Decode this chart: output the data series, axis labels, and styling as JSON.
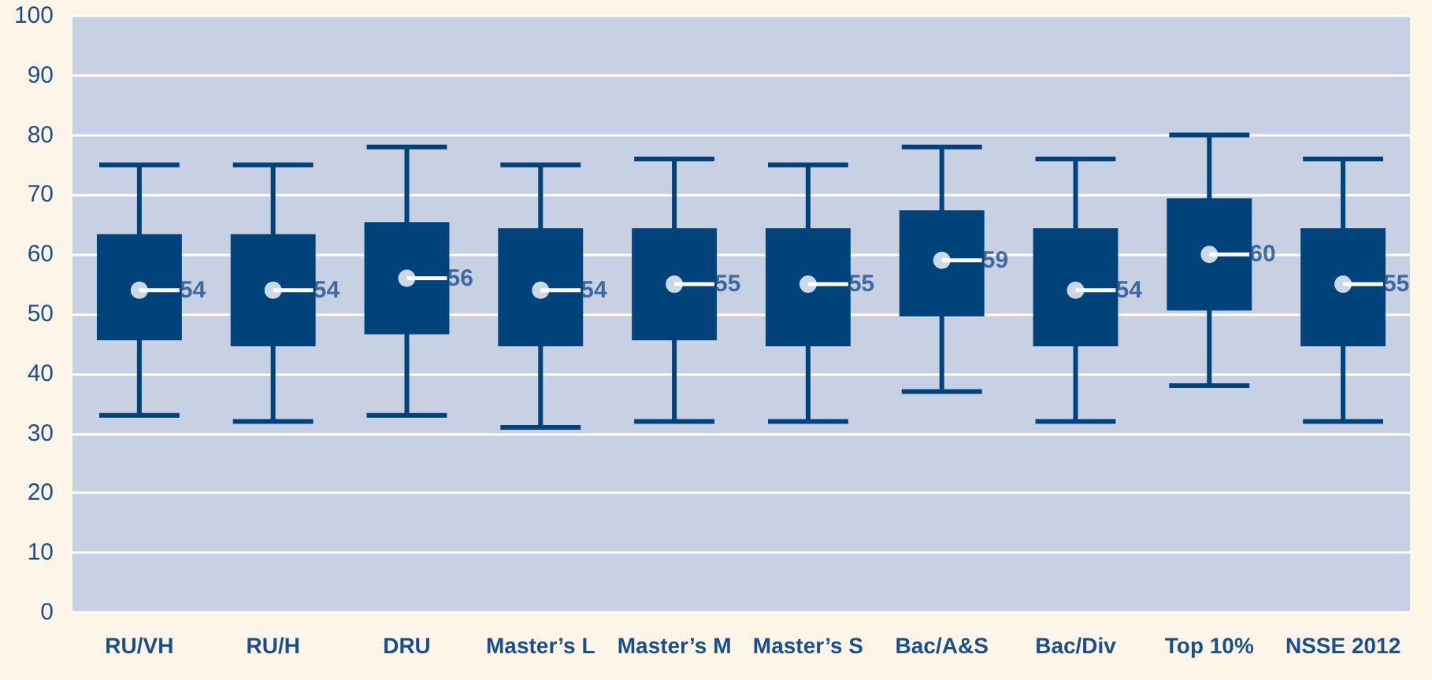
{
  "chart_data": {
    "type": "box",
    "categories": [
      "RU/VH",
      "RU/H",
      "DRU",
      "Master’s L",
      "Master’s M",
      "Master’s S",
      "Bac/A&S",
      "Bac/Div",
      "Top 10%",
      "NSSE 2012"
    ],
    "boxes": [
      {
        "low": 33,
        "q1": 46,
        "median": 54,
        "q3": 63,
        "high": 75
      },
      {
        "low": 32,
        "q1": 45,
        "median": 54,
        "q3": 63,
        "high": 75
      },
      {
        "low": 33,
        "q1": 47,
        "median": 56,
        "q3": 65,
        "high": 78
      },
      {
        "low": 31,
        "q1": 45,
        "median": 54,
        "q3": 64,
        "high": 75
      },
      {
        "low": 32,
        "q1": 46,
        "median": 55,
        "q3": 64,
        "high": 76
      },
      {
        "low": 32,
        "q1": 45,
        "median": 55,
        "q3": 64,
        "high": 75
      },
      {
        "low": 37,
        "q1": 50,
        "median": 59,
        "q3": 67,
        "high": 78
      },
      {
        "low": 32,
        "q1": 45,
        "median": 54,
        "q3": 64,
        "high": 76
      },
      {
        "low": 38,
        "q1": 51,
        "median": 60,
        "q3": 69,
        "high": 80
      },
      {
        "low": 32,
        "q1": 45,
        "median": 55,
        "q3": 64,
        "high": 76
      }
    ],
    "series": [
      {
        "type": "scatter",
        "color": "#ffffff",
        "x": [
          "RU/VH",
          "RU/H",
          "DRU",
          "Master’s L",
          "Master’s M",
          "Master’s S",
          "Bac/A&S",
          "Bac/Div",
          "Top 10%",
          "NSSE 2012"
        ],
        "values": [
          54,
          54,
          56,
          54,
          55,
          55,
          59,
          54,
          60,
          55
        ]
      }
    ],
    "color": "#00427a",
    "ylim": [
      0,
      100
    ],
    "yticks": [
      0,
      10,
      20,
      30,
      40,
      50,
      60,
      70,
      80,
      90,
      100
    ],
    "grid": "y",
    "data_labels": true,
    "marker": "circle"
  }
}
